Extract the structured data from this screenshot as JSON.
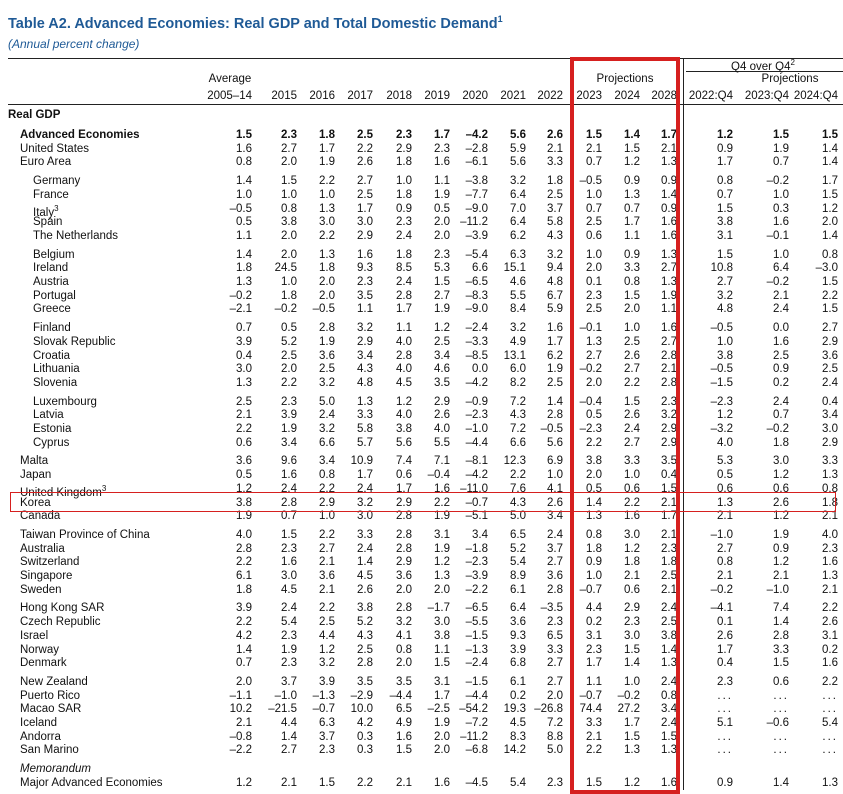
{
  "table": {
    "title": "Table A2. Advanced Economies: Real GDP and Total Domestic Demand",
    "title_note": "1",
    "subtitle": "(Annual percent change)",
    "header": {
      "average_label": "Average",
      "q4_label": "Q4 over Q4",
      "q4_note": "2",
      "projections_label": "Projections",
      "projections_q4_label": "Projections",
      "columns": [
        "2005–14",
        "2015",
        "2016",
        "2017",
        "2018",
        "2019",
        "2020",
        "2021",
        "2022",
        "2023",
        "2024",
        "2028",
        "2022:Q4",
        "2023:Q4",
        "2024:Q4"
      ]
    },
    "section_label": "Real GDP",
    "rows": [
      {
        "name": "Advanced Economies",
        "bold": true,
        "indent": 1,
        "values": [
          "1.5",
          "2.3",
          "1.8",
          "2.5",
          "2.3",
          "1.7",
          "–4.2",
          "5.6",
          "2.6",
          "1.5",
          "1.4",
          "1.7",
          "1.2",
          "1.5",
          "1.5"
        ]
      },
      {
        "name": "United States",
        "indent": 1,
        "values": [
          "1.6",
          "2.7",
          "1.7",
          "2.2",
          "2.9",
          "2.3",
          "–2.8",
          "5.9",
          "2.1",
          "2.1",
          "1.5",
          "2.1",
          "0.9",
          "1.9",
          "1.4"
        ]
      },
      {
        "name": "Euro Area",
        "indent": 1,
        "values": [
          "0.8",
          "2.0",
          "1.9",
          "2.6",
          "1.8",
          "1.6",
          "–6.1",
          "5.6",
          "3.3",
          "0.7",
          "1.2",
          "1.3",
          "1.7",
          "0.7",
          "1.4"
        ]
      },
      {
        "name": "Germany",
        "indent": 2,
        "gap": true,
        "values": [
          "1.4",
          "1.5",
          "2.2",
          "2.7",
          "1.0",
          "1.1",
          "–3.8",
          "3.2",
          "1.8",
          "–0.5",
          "0.9",
          "0.9",
          "0.8",
          "–0.2",
          "1.7"
        ]
      },
      {
        "name": "France",
        "indent": 2,
        "values": [
          "1.0",
          "1.0",
          "1.0",
          "2.5",
          "1.8",
          "1.9",
          "–7.7",
          "6.4",
          "2.5",
          "1.0",
          "1.3",
          "1.4",
          "0.7",
          "1.0",
          "1.5"
        ]
      },
      {
        "name": "Italy",
        "note": "3",
        "indent": 2,
        "values": [
          "–0.5",
          "0.8",
          "1.3",
          "1.7",
          "0.9",
          "0.5",
          "–9.0",
          "7.0",
          "3.7",
          "0.7",
          "0.7",
          "0.9",
          "1.5",
          "0.3",
          "1.2"
        ]
      },
      {
        "name": "Spain",
        "indent": 2,
        "values": [
          "0.5",
          "3.8",
          "3.0",
          "3.0",
          "2.3",
          "2.0",
          "–11.2",
          "6.4",
          "5.8",
          "2.5",
          "1.7",
          "1.6",
          "3.8",
          "1.6",
          "2.0"
        ]
      },
      {
        "name": "The Netherlands",
        "indent": 2,
        "values": [
          "1.1",
          "2.0",
          "2.2",
          "2.9",
          "2.4",
          "2.0",
          "–3.9",
          "6.2",
          "4.3",
          "0.6",
          "1.1",
          "1.6",
          "3.1",
          "–0.1",
          "1.4"
        ]
      },
      {
        "name": "Belgium",
        "indent": 2,
        "gap": true,
        "values": [
          "1.4",
          "2.0",
          "1.3",
          "1.6",
          "1.8",
          "2.3",
          "–5.4",
          "6.3",
          "3.2",
          "1.0",
          "0.9",
          "1.3",
          "1.5",
          "1.0",
          "0.8"
        ]
      },
      {
        "name": "Ireland",
        "indent": 2,
        "values": [
          "1.8",
          "24.5",
          "1.8",
          "9.3",
          "8.5",
          "5.3",
          "6.6",
          "15.1",
          "9.4",
          "2.0",
          "3.3",
          "2.7",
          "10.8",
          "6.4",
          "–3.0"
        ]
      },
      {
        "name": "Austria",
        "indent": 2,
        "values": [
          "1.3",
          "1.0",
          "2.0",
          "2.3",
          "2.4",
          "1.5",
          "–6.5",
          "4.6",
          "4.8",
          "0.1",
          "0.8",
          "1.3",
          "2.7",
          "–0.2",
          "1.5"
        ]
      },
      {
        "name": "Portugal",
        "indent": 2,
        "values": [
          "–0.2",
          "1.8",
          "2.0",
          "3.5",
          "2.8",
          "2.7",
          "–8.3",
          "5.5",
          "6.7",
          "2.3",
          "1.5",
          "1.9",
          "3.2",
          "2.1",
          "2.2"
        ]
      },
      {
        "name": "Greece",
        "indent": 2,
        "values": [
          "–2.1",
          "–0.2",
          "–0.5",
          "1.1",
          "1.7",
          "1.9",
          "–9.0",
          "8.4",
          "5.9",
          "2.5",
          "2.0",
          "1.1",
          "4.8",
          "2.4",
          "1.5"
        ]
      },
      {
        "name": "Finland",
        "indent": 2,
        "gap": true,
        "values": [
          "0.7",
          "0.5",
          "2.8",
          "3.2",
          "1.1",
          "1.2",
          "–2.4",
          "3.2",
          "1.6",
          "–0.1",
          "1.0",
          "1.6",
          "–0.5",
          "0.0",
          "2.7"
        ]
      },
      {
        "name": "Slovak Republic",
        "indent": 2,
        "values": [
          "3.9",
          "5.2",
          "1.9",
          "2.9",
          "4.0",
          "2.5",
          "–3.3",
          "4.9",
          "1.7",
          "1.3",
          "2.5",
          "2.7",
          "1.0",
          "1.6",
          "2.9"
        ]
      },
      {
        "name": "Croatia",
        "indent": 2,
        "values": [
          "0.4",
          "2.5",
          "3.6",
          "3.4",
          "2.8",
          "3.4",
          "–8.5",
          "13.1",
          "6.2",
          "2.7",
          "2.6",
          "2.8",
          "3.8",
          "2.5",
          "3.6"
        ]
      },
      {
        "name": "Lithuania",
        "indent": 2,
        "values": [
          "3.0",
          "2.0",
          "2.5",
          "4.3",
          "4.0",
          "4.6",
          "0.0",
          "6.0",
          "1.9",
          "–0.2",
          "2.7",
          "2.1",
          "–0.5",
          "0.9",
          "2.5"
        ]
      },
      {
        "name": "Slovenia",
        "indent": 2,
        "values": [
          "1.3",
          "2.2",
          "3.2",
          "4.8",
          "4.5",
          "3.5",
          "–4.2",
          "8.2",
          "2.5",
          "2.0",
          "2.2",
          "2.8",
          "–1.5",
          "0.2",
          "2.4"
        ]
      },
      {
        "name": "Luxembourg",
        "indent": 2,
        "gap": true,
        "values": [
          "2.5",
          "2.3",
          "5.0",
          "1.3",
          "1.2",
          "2.9",
          "–0.9",
          "7.2",
          "1.4",
          "–0.4",
          "1.5",
          "2.3",
          "–2.3",
          "2.4",
          "0.4"
        ]
      },
      {
        "name": "Latvia",
        "indent": 2,
        "values": [
          "2.1",
          "3.9",
          "2.4",
          "3.3",
          "4.0",
          "2.6",
          "–2.3",
          "4.3",
          "2.8",
          "0.5",
          "2.6",
          "3.2",
          "1.2",
          "0.7",
          "3.4"
        ]
      },
      {
        "name": "Estonia",
        "indent": 2,
        "values": [
          "2.2",
          "1.9",
          "3.2",
          "5.8",
          "3.8",
          "4.0",
          "–1.0",
          "7.2",
          "–0.5",
          "–2.3",
          "2.4",
          "2.9",
          "–3.2",
          "–0.2",
          "3.0"
        ]
      },
      {
        "name": "Cyprus",
        "indent": 2,
        "values": [
          "0.6",
          "3.4",
          "6.6",
          "5.7",
          "5.6",
          "5.5",
          "–4.4",
          "6.6",
          "5.6",
          "2.2",
          "2.7",
          "2.9",
          "4.0",
          "1.8",
          "2.9"
        ]
      },
      {
        "name": "Malta",
        "indent": 1,
        "gap": true,
        "values": [
          "3.6",
          "9.6",
          "3.4",
          "10.9",
          "7.4",
          "7.1",
          "–8.1",
          "12.3",
          "6.9",
          "3.8",
          "3.3",
          "3.5",
          "5.3",
          "3.0",
          "3.3"
        ]
      },
      {
        "name": "Japan",
        "indent": 1,
        "values": [
          "0.5",
          "1.6",
          "0.8",
          "1.7",
          "0.6",
          "–0.4",
          "–4.2",
          "2.2",
          "1.0",
          "2.0",
          "1.0",
          "0.4",
          "0.5",
          "1.2",
          "1.3"
        ]
      },
      {
        "name": "United Kingdom",
        "note": "3",
        "indent": 1,
        "values": [
          "1.2",
          "2.4",
          "2.2",
          "2.4",
          "1.7",
          "1.6",
          "–11.0",
          "7.6",
          "4.1",
          "0.5",
          "0.6",
          "1.5",
          "0.6",
          "0.6",
          "0.8"
        ]
      },
      {
        "name": "Korea",
        "indent": 1,
        "values": [
          "3.8",
          "2.8",
          "2.9",
          "3.2",
          "2.9",
          "2.2",
          "–0.7",
          "4.3",
          "2.6",
          "1.4",
          "2.2",
          "2.1",
          "1.3",
          "2.6",
          "1.8"
        ]
      },
      {
        "name": "Canada",
        "indent": 1,
        "values": [
          "1.9",
          "0.7",
          "1.0",
          "3.0",
          "2.8",
          "1.9",
          "–5.1",
          "5.0",
          "3.4",
          "1.3",
          "1.6",
          "1.7",
          "2.1",
          "1.2",
          "2.1"
        ]
      },
      {
        "name": "Taiwan Province of China",
        "indent": 1,
        "gap": true,
        "values": [
          "4.0",
          "1.5",
          "2.2",
          "3.3",
          "2.8",
          "3.1",
          "3.4",
          "6.5",
          "2.4",
          "0.8",
          "3.0",
          "2.1",
          "–1.0",
          "1.9",
          "4.0"
        ]
      },
      {
        "name": "Australia",
        "indent": 1,
        "values": [
          "2.8",
          "2.3",
          "2.7",
          "2.4",
          "2.8",
          "1.9",
          "–1.8",
          "5.2",
          "3.7",
          "1.8",
          "1.2",
          "2.3",
          "2.7",
          "0.9",
          "2.3"
        ]
      },
      {
        "name": "Switzerland",
        "indent": 1,
        "values": [
          "2.2",
          "1.6",
          "2.1",
          "1.4",
          "2.9",
          "1.2",
          "–2.3",
          "5.4",
          "2.7",
          "0.9",
          "1.8",
          "1.8",
          "0.8",
          "1.2",
          "1.6"
        ]
      },
      {
        "name": "Singapore",
        "indent": 1,
        "values": [
          "6.1",
          "3.0",
          "3.6",
          "4.5",
          "3.6",
          "1.3",
          "–3.9",
          "8.9",
          "3.6",
          "1.0",
          "2.1",
          "2.5",
          "2.1",
          "2.1",
          "1.3"
        ]
      },
      {
        "name": "Sweden",
        "indent": 1,
        "values": [
          "1.8",
          "4.5",
          "2.1",
          "2.6",
          "2.0",
          "2.0",
          "–2.2",
          "6.1",
          "2.8",
          "–0.7",
          "0.6",
          "2.1",
          "–0.2",
          "–1.0",
          "2.1"
        ]
      },
      {
        "name": "Hong Kong SAR",
        "indent": 1,
        "gap": true,
        "values": [
          "3.9",
          "2.4",
          "2.2",
          "3.8",
          "2.8",
          "–1.7",
          "–6.5",
          "6.4",
          "–3.5",
          "4.4",
          "2.9",
          "2.4",
          "–4.1",
          "7.4",
          "2.2"
        ]
      },
      {
        "name": "Czech Republic",
        "indent": 1,
        "values": [
          "2.2",
          "5.4",
          "2.5",
          "5.2",
          "3.2",
          "3.0",
          "–5.5",
          "3.6",
          "2.3",
          "0.2",
          "2.3",
          "2.5",
          "0.1",
          "1.4",
          "2.6"
        ]
      },
      {
        "name": "Israel",
        "indent": 1,
        "values": [
          "4.2",
          "2.3",
          "4.4",
          "4.3",
          "4.1",
          "3.8",
          "–1.5",
          "9.3",
          "6.5",
          "3.1",
          "3.0",
          "3.8",
          "2.6",
          "2.8",
          "3.1"
        ]
      },
      {
        "name": "Norway",
        "indent": 1,
        "values": [
          "1.4",
          "1.9",
          "1.2",
          "2.5",
          "0.8",
          "1.1",
          "–1.3",
          "3.9",
          "3.3",
          "2.3",
          "1.5",
          "1.4",
          "1.7",
          "3.3",
          "0.2"
        ]
      },
      {
        "name": "Denmark",
        "indent": 1,
        "values": [
          "0.7",
          "2.3",
          "3.2",
          "2.8",
          "2.0",
          "1.5",
          "–2.4",
          "6.8",
          "2.7",
          "1.7",
          "1.4",
          "1.3",
          "0.4",
          "1.5",
          "1.6"
        ]
      },
      {
        "name": "New Zealand",
        "indent": 1,
        "gap": true,
        "values": [
          "2.0",
          "3.7",
          "3.9",
          "3.5",
          "3.5",
          "3.1",
          "–1.5",
          "6.1",
          "2.7",
          "1.1",
          "1.0",
          "2.4",
          "2.3",
          "0.6",
          "2.2"
        ]
      },
      {
        "name": "Puerto Rico",
        "indent": 1,
        "values": [
          "–1.1",
          "–1.0",
          "–1.3",
          "–2.9",
          "–4.4",
          "1.7",
          "–4.4",
          "0.2",
          "2.0",
          "–0.7",
          "–0.2",
          "0.8",
          "...",
          "...",
          "..."
        ]
      },
      {
        "name": "Macao SAR",
        "indent": 1,
        "values": [
          "10.2",
          "–21.5",
          "–0.7",
          "10.0",
          "6.5",
          "–2.5",
          "–54.2",
          "19.3",
          "–26.8",
          "74.4",
          "27.2",
          "3.4",
          "...",
          "...",
          "..."
        ]
      },
      {
        "name": "Iceland",
        "indent": 1,
        "values": [
          "2.1",
          "4.4",
          "6.3",
          "4.2",
          "4.9",
          "1.9",
          "–7.2",
          "4.5",
          "7.2",
          "3.3",
          "1.7",
          "2.4",
          "5.1",
          "–0.6",
          "5.4"
        ]
      },
      {
        "name": "Andorra",
        "indent": 1,
        "values": [
          "–0.8",
          "1.4",
          "3.7",
          "0.3",
          "1.6",
          "2.0",
          "–11.2",
          "8.3",
          "8.8",
          "2.1",
          "1.5",
          "1.5",
          "...",
          "...",
          "..."
        ]
      },
      {
        "name": "San Marino",
        "indent": 1,
        "values": [
          "–2.2",
          "2.7",
          "2.3",
          "0.3",
          "1.5",
          "2.0",
          "–6.8",
          "14.2",
          "5.0",
          "2.2",
          "1.3",
          "1.3",
          "...",
          "...",
          "..."
        ]
      },
      {
        "name": "Memorandum",
        "indent": 1,
        "italic": true,
        "gap": true,
        "values": []
      },
      {
        "name": "Major Advanced Economies",
        "indent": 1,
        "values": [
          "1.2",
          "2.1",
          "1.5",
          "2.2",
          "2.1",
          "1.6",
          "–4.5",
          "5.4",
          "2.3",
          "1.5",
          "1.2",
          "1.6",
          "0.9",
          "1.4",
          "1.3"
        ]
      }
    ]
  }
}
